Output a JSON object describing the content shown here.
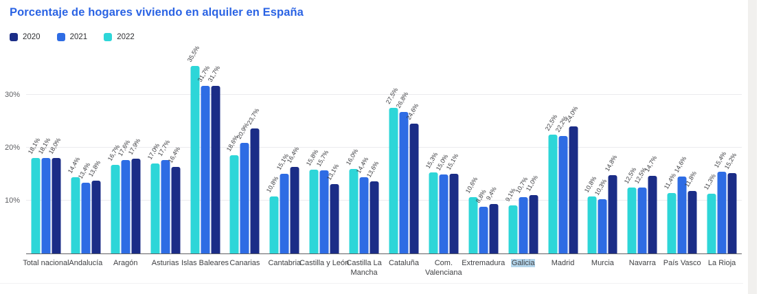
{
  "page": {
    "title": "Porcentaje de hogares viviendo en alquiler en España",
    "title_color": "#2a63e4"
  },
  "legend": [
    {
      "label": "2020",
      "color": "#1b2d87"
    },
    {
      "label": "2021",
      "color": "#2e6ce4"
    },
    {
      "label": "2022",
      "color": "#2dd6d8"
    }
  ],
  "chart_data": {
    "type": "bar",
    "title": "Porcentaje de hogares viviendo en alquiler en España",
    "xlabel": "",
    "ylabel": "",
    "y_ticks": [
      "10%",
      "20%",
      "30%"
    ],
    "ylim": [
      0,
      39
    ],
    "grid": true,
    "legend_position": "top-left",
    "value_label_format": "comma-decimal-percent",
    "bar_order_left_to_right": [
      "2022",
      "2021",
      "2020"
    ],
    "highlighted_category": "Galicia",
    "categories": [
      "Total nacional",
      "Andalucía",
      "Aragón",
      "Asturias",
      "Islas Baleares",
      "Canarias",
      "Cantabria",
      "Castilla y León",
      "Castilla La Mancha",
      "Cataluña",
      "Com. Valenciana",
      "Extremadura",
      "Galicia",
      "Madrid",
      "Murcia",
      "Navarra",
      "País Vasco",
      "La Rioja"
    ],
    "series": [
      {
        "name": "2020",
        "color": "#1b2d87",
        "values": [
          18.0,
          13.8,
          17.9,
          16.4,
          31.7,
          23.7,
          16.4,
          13.1,
          13.6,
          24.6,
          15.1,
          9.4,
          11.0,
          24.0,
          14.8,
          14.7,
          11.8,
          15.2
        ]
      },
      {
        "name": "2021",
        "color": "#2e6ce4",
        "values": [
          18.1,
          13.4,
          17.6,
          17.7,
          31.7,
          20.9,
          15.1,
          15.7,
          14.4,
          26.8,
          15.0,
          8.8,
          10.7,
          22.2,
          10.3,
          12.5,
          14.6,
          15.4
        ]
      },
      {
        "name": "2022",
        "color": "#2dd6d8",
        "values": [
          18.1,
          14.4,
          16.7,
          17.0,
          35.5,
          18.6,
          10.8,
          15.8,
          16.0,
          27.5,
          15.3,
          10.6,
          9.1,
          22.5,
          10.8,
          12.5,
          11.4,
          11.3
        ]
      }
    ]
  }
}
